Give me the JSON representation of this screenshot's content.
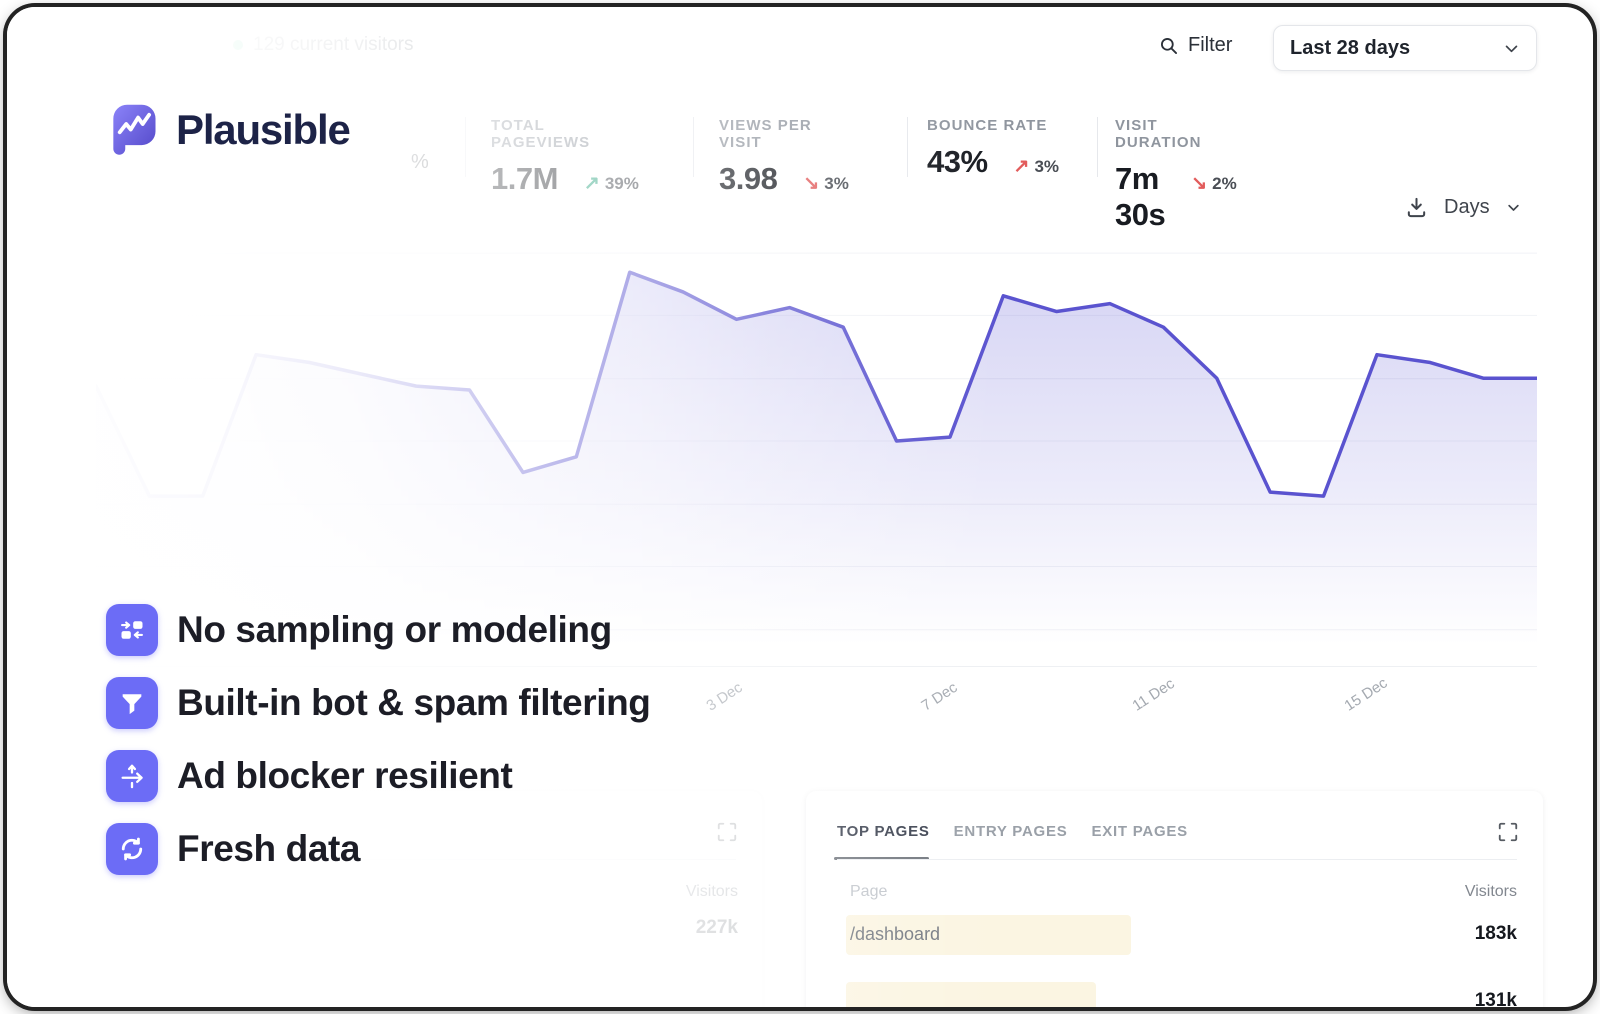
{
  "topbar": {
    "current_visitors": "129 current visitors",
    "filter_label": "Filter",
    "date_range": "Last 28 days"
  },
  "brand": {
    "name": "Plausible"
  },
  "stats": {
    "faded_percent_fragment": "%",
    "items": [
      {
        "label": "TOTAL PAGEVIEWS",
        "value": "1.7M",
        "arrow": "↗",
        "change": "39%",
        "arrow_hex": "#2ba37f"
      },
      {
        "label": "VIEWS PER VISIT",
        "value": "3.98",
        "arrow": "↘",
        "change": "3%",
        "arrow_hex": "#e25c5c"
      },
      {
        "label": "BOUNCE RATE",
        "value": "43%",
        "arrow": "↗",
        "change": "3%",
        "arrow_hex": "#e25c5c"
      },
      {
        "label": "VISIT DURATION",
        "value": "7m 30s",
        "arrow": "↘",
        "change": "2%",
        "arrow_hex": "#e25c5c"
      }
    ]
  },
  "chart_controls": {
    "interval": "Days"
  },
  "chart_data": {
    "type": "area",
    "series_name": "Visitors",
    "x_tick_labels": [
      "3 Dec",
      "7 Dec",
      "11 Dec",
      "15 Dec"
    ],
    "values": [
      71,
      43,
      43,
      79,
      77,
      74,
      71,
      70,
      49,
      53,
      100,
      95,
      88,
      91,
      86,
      57,
      58,
      94,
      90,
      92,
      86,
      73,
      44,
      43,
      79,
      77,
      73,
      73
    ],
    "y_axis": "unlabeled (relative visitors, 0–100 of peak)",
    "x_axis": "days, last 28 days ending mid-December",
    "grid": "light horizontal gridlines",
    "legend": "none",
    "line_color": "#5a53cf",
    "fill_style": "vertical fade of line color to transparent"
  },
  "features": [
    {
      "icon": "branch-boxes-icon",
      "label": "No sampling or modeling"
    },
    {
      "icon": "funnel-icon",
      "label": "Built-in bot & spam filtering"
    },
    {
      "icon": "arrow-through-icon",
      "label": "Ad blocker resilient"
    },
    {
      "icon": "refresh-icon",
      "label": "Fresh data"
    }
  ],
  "pages_card": {
    "tabs": [
      {
        "label": "TOP PAGES",
        "active": true
      },
      {
        "label": "ENTRY PAGES",
        "active": false
      },
      {
        "label": "EXIT PAGES",
        "active": false
      }
    ],
    "col_page": "Page",
    "col_visitors": "Visitors",
    "rows": [
      {
        "page": "/dashboard",
        "visitors": "183k"
      },
      {
        "page": "",
        "visitors": "131k"
      }
    ]
  },
  "sources_card_faded": {
    "visitors_header": "Visitors",
    "top_value": "227k"
  },
  "colors": {
    "accent_purple": "#5a53cf",
    "feature_icon_purple": "#6c6cf6",
    "logo_navy": "#1d2347",
    "positive_green": "#2ba37f",
    "negative_red": "#e25c5c",
    "row_highlight_cream": "#fbf5e2"
  }
}
